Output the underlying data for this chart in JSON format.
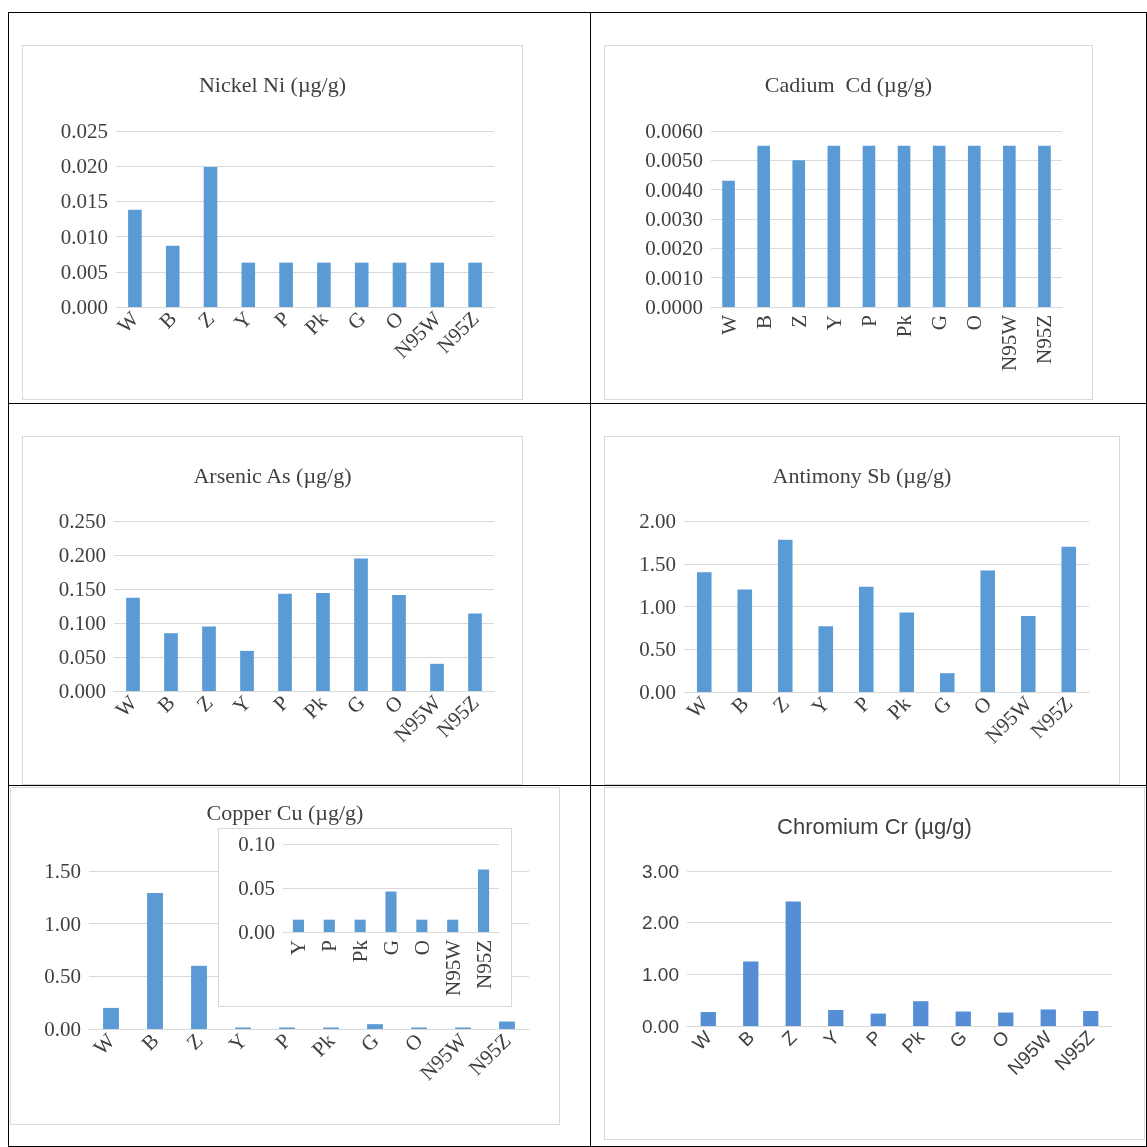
{
  "chart_data": [
    {
      "type": "bar",
      "title": "Nickel Ni (µg/g)",
      "categories": [
        "W",
        "B",
        "Z",
        "Y",
        "P",
        "Pk",
        "G",
        "O",
        "N95W",
        "N95Z"
      ],
      "values": [
        0.0138,
        0.0087,
        0.0199,
        0.0063,
        0.0063,
        0.0063,
        0.0063,
        0.0063,
        0.0063,
        0.0063
      ],
      "color": "#5b9bd5",
      "ylim": [
        0,
        0.025
      ],
      "yticks": [
        {
          "value": 0,
          "label": "0.000"
        },
        {
          "value": 0.005,
          "label": "0.005"
        },
        {
          "value": 0.01,
          "label": "0.010"
        },
        {
          "value": 0.015,
          "label": "0.015"
        },
        {
          "value": 0.02,
          "label": "0.020"
        },
        {
          "value": 0.025,
          "label": "0.025"
        }
      ],
      "grid": true
    },
    {
      "type": "bar",
      "title": "Cadium  Cd (µg/g)",
      "categories": [
        "W",
        "B",
        "Z",
        "Y",
        "P",
        "Pk",
        "G",
        "O",
        "N95W",
        "N95Z"
      ],
      "values": [
        0.0043,
        0.0055,
        0.005,
        0.0055,
        0.0055,
        0.0055,
        0.0055,
        0.0055,
        0.0055,
        0.0055
      ],
      "color": "#5b9bd5",
      "ylim": [
        0,
        0.006
      ],
      "yticks": [
        {
          "value": 0,
          "label": "0.0000"
        },
        {
          "value": 0.001,
          "label": "0.0010"
        },
        {
          "value": 0.002,
          "label": "0.0020"
        },
        {
          "value": 0.003,
          "label": "0.0030"
        },
        {
          "value": 0.004,
          "label": "0.0040"
        },
        {
          "value": 0.005,
          "label": "0.0050"
        },
        {
          "value": 0.006,
          "label": "0.0060"
        }
      ],
      "grid": true
    },
    {
      "type": "bar",
      "title": "Arsenic As (µg/g)",
      "categories": [
        "W",
        "B",
        "Z",
        "Y",
        "P",
        "Pk",
        "G",
        "O",
        "N95W",
        "N95Z"
      ],
      "values": [
        0.137,
        0.085,
        0.095,
        0.059,
        0.143,
        0.144,
        0.195,
        0.141,
        0.04,
        0.114
      ],
      "color": "#5b9bd5",
      "ylim": [
        0,
        0.25
      ],
      "yticks": [
        {
          "value": 0,
          "label": "0.000"
        },
        {
          "value": 0.05,
          "label": "0.050"
        },
        {
          "value": 0.1,
          "label": "0.100"
        },
        {
          "value": 0.15,
          "label": "0.150"
        },
        {
          "value": 0.2,
          "label": "0.200"
        },
        {
          "value": 0.25,
          "label": "0.250"
        }
      ],
      "grid": true
    },
    {
      "type": "bar",
      "title": "Antimony Sb (µg/g)",
      "categories": [
        "W",
        "B",
        "Z",
        "Y",
        "P",
        "Pk",
        "G",
        "O",
        "N95W",
        "N95Z"
      ],
      "values": [
        1.4,
        1.2,
        1.78,
        0.77,
        1.23,
        0.93,
        0.22,
        1.42,
        0.89,
        1.7
      ],
      "color": "#5b9bd5",
      "ylim": [
        0,
        2
      ],
      "yticks": [
        {
          "value": 0,
          "label": "0.00"
        },
        {
          "value": 0.5,
          "label": "0.50"
        },
        {
          "value": 1,
          "label": "1.00"
        },
        {
          "value": 1.5,
          "label": "1.50"
        },
        {
          "value": 2,
          "label": "2.00"
        }
      ],
      "grid": true
    },
    {
      "type": "bar",
      "title": "Copper Cu (µg/g)",
      "categories": [
        "W",
        "B",
        "Z",
        "Y",
        "P",
        "Pk",
        "G",
        "O",
        "N95W",
        "N95Z"
      ],
      "values": [
        0.2,
        1.29,
        0.6,
        0.014,
        0.014,
        0.014,
        0.046,
        0.014,
        0.014,
        0.071
      ],
      "color": "#5b9bd5",
      "ylim": [
        0,
        1.5
      ],
      "yticks": [
        {
          "value": 0,
          "label": "0.00"
        },
        {
          "value": 0.5,
          "label": "0.50"
        },
        {
          "value": 1,
          "label": "1.00"
        },
        {
          "value": 1.5,
          "label": "1.50"
        }
      ],
      "grid": true
    },
    {
      "type": "bar",
      "categories": [
        "Y",
        "P",
        "Pk",
        "G",
        "O",
        "N95W",
        "N95Z"
      ],
      "values": [
        0.014,
        0.014,
        0.014,
        0.046,
        0.014,
        0.014,
        0.071
      ],
      "color": "#5b9bd5",
      "ylim": [
        0,
        0.1
      ],
      "yticks": [
        {
          "value": 0,
          "label": "0.00"
        },
        {
          "value": 0.05,
          "label": "0.05"
        },
        {
          "value": 0.1,
          "label": "0.10"
        }
      ],
      "grid": true
    },
    {
      "type": "bar",
      "title": "Chromium Cr (µg/g)",
      "categories": [
        "W",
        "B",
        "Z",
        "Y",
        "P",
        "Pk",
        "G",
        "O",
        "N95W",
        "N95Z"
      ],
      "values": [
        0.27,
        1.25,
        2.41,
        0.31,
        0.24,
        0.48,
        0.28,
        0.26,
        0.32,
        0.29
      ],
      "color": "#558ed5",
      "ylim": [
        0,
        3
      ],
      "yticks": [
        {
          "value": 0,
          "label": "0.00"
        },
        {
          "value": 1,
          "label": "1.00"
        },
        {
          "value": 2,
          "label": "2.00"
        },
        {
          "value": 3,
          "label": "3.00"
        }
      ],
      "grid": true
    }
  ]
}
